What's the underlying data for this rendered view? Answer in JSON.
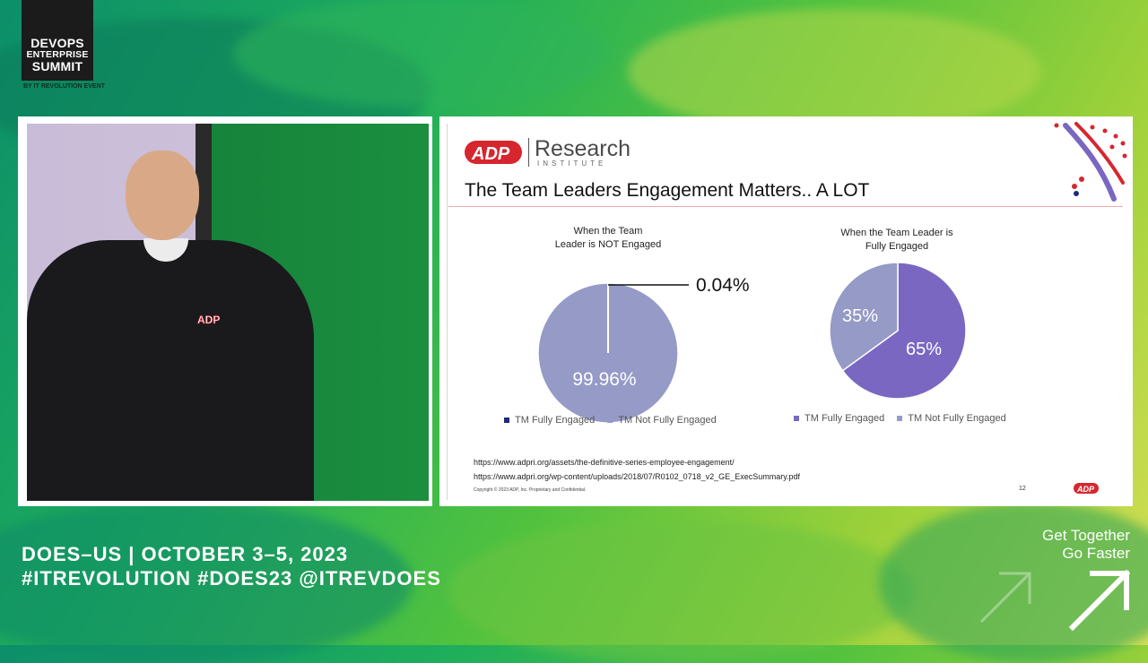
{
  "brand": {
    "logo_lines": [
      "DEVOPS",
      "ENTERPRISE",
      "SUMMIT"
    ],
    "by_line": "BY IT REVOLUTION EVENT"
  },
  "slide": {
    "logo_research": "Research",
    "logo_institute": "INSTITUTE",
    "title": "The Team Leaders Engagement Matters.. A LOT",
    "page_number": "12",
    "copyright": "Copyright © 2023 ADP, Inc. Proprietary and Confidential.",
    "links": [
      "https://www.adpri.org/assets/the-definitive-series-employee-engagement/",
      "https://www.adpri.org/wp-content/uploads/2018/07/R0102_0718_v2_GE_ExecSummary.pdf"
    ],
    "colors": {
      "accent_red": "#d6262e",
      "pie_light": "#959ac6",
      "pie_dark": "#7a67c2",
      "legend_navy": "#1f2a7a"
    }
  },
  "chart_data": [
    {
      "type": "pie",
      "title": "When the Team Leader is NOT Engaged",
      "title_lines": [
        "When the Team",
        "Leader is NOT Engaged"
      ],
      "labels": [
        "TM Fully Engaged",
        "TM Not Fully Engaged"
      ],
      "values": [
        0.04,
        99.96
      ],
      "data_labels": [
        "0.04%",
        "99.96%"
      ],
      "legend_position": "bottom"
    },
    {
      "type": "pie",
      "title": "When the Team Leader is Fully Engaged",
      "title_lines": [
        "When the Team Leader is",
        "Fully Engaged"
      ],
      "labels": [
        "TM Fully Engaged",
        "TM Not Fully Engaged"
      ],
      "values": [
        65,
        35
      ],
      "data_labels": [
        "65%",
        "35%"
      ],
      "legend_position": "bottom"
    }
  ],
  "footer": {
    "event_line1": "DOES–US | OCTOBER 3–5, 2023",
    "event_line2": "#ITREVOLUTION  #DOES23  @ITREVDOES",
    "tagline_line1": "Get Together",
    "tagline_line2": "Go Faster"
  }
}
